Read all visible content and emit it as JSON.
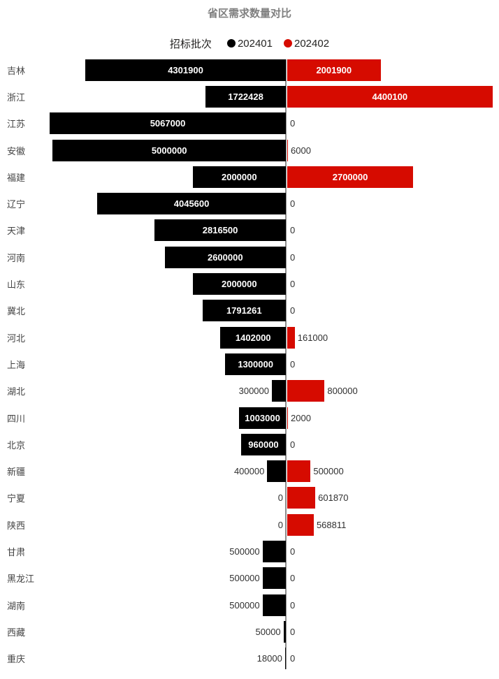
{
  "chart_data": {
    "type": "bar",
    "variant": "diverging-horizontal-tornado",
    "title": "省区需求数量对比",
    "legend_title": "招标批次",
    "legend_position": "top-center",
    "grid": false,
    "value_labels": "shown (white inside wide bars, dark outside narrow bars)",
    "categories": [
      "吉林",
      "浙江",
      "江苏",
      "安徽",
      "福建",
      "辽宁",
      "天津",
      "河南",
      "山东",
      "冀北",
      "河北",
      "上海",
      "湖北",
      "四川",
      "北京",
      "新疆",
      "宁夏",
      "陕西",
      "甘肃",
      "黑龙江",
      "湖南",
      "西藏",
      "重庆"
    ],
    "series": [
      {
        "name": "202401",
        "side": "left",
        "color": "#000000",
        "values": [
          4301900,
          1722428,
          5067000,
          5000000,
          2000000,
          4045600,
          2816500,
          2600000,
          2000000,
          1791261,
          1402000,
          1300000,
          300000,
          1003000,
          960000,
          400000,
          0,
          0,
          500000,
          500000,
          500000,
          50000,
          18000
        ]
      },
      {
        "name": "202402",
        "side": "right",
        "color": "#D60B00",
        "values": [
          2001900,
          4400100,
          0,
          6000,
          2700000,
          0,
          0,
          0,
          0,
          0,
          161000,
          0,
          800000,
          2000,
          0,
          500000,
          601870,
          568811,
          0,
          0,
          0,
          0,
          0
        ]
      }
    ],
    "axis": {
      "center_value": 0,
      "left_max": 5067000,
      "right_max": 4400100,
      "axis_line_color": "#8c8c8c"
    },
    "title_color": "#7f7f7f",
    "label_color_inside": "#ffffff",
    "label_color_outside": "#303030"
  }
}
